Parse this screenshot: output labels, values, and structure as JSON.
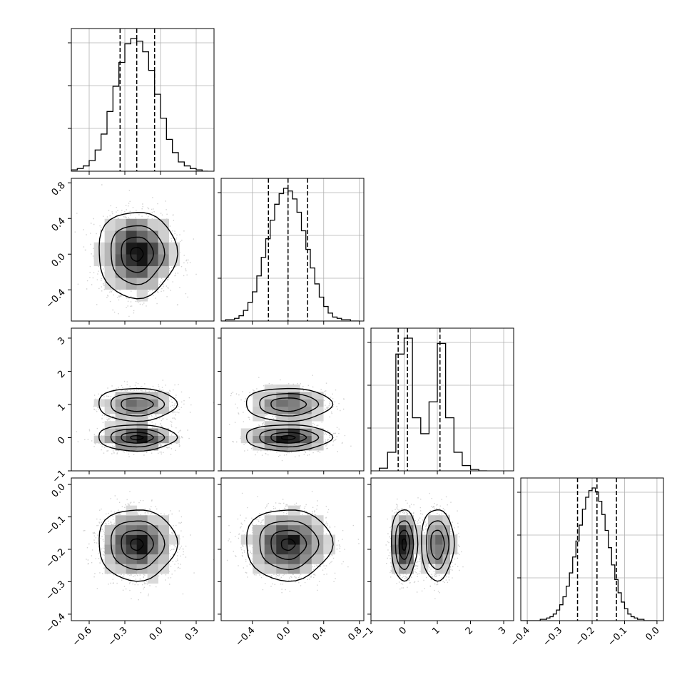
{
  "figure": {
    "background": "#ffffff",
    "ink_color": "#000000",
    "grid_color": "#b0b0b0",
    "scatter_color": "#9a9a9a"
  },
  "parameters": [
    {
      "range": [
        -0.75,
        0.45
      ],
      "ticks": [
        -0.6,
        -0.3,
        0.0,
        0.3
      ],
      "tick_labels": [
        "−0.6",
        "−0.3",
        "0.0",
        "0.3"
      ],
      "mean": -0.2,
      "sd": 0.15,
      "quantiles": [
        -0.34,
        -0.2,
        -0.05
      ]
    },
    {
      "range": [
        -0.75,
        0.85
      ],
      "ticks": [
        -0.4,
        0.0,
        0.4,
        0.8
      ],
      "tick_labels": [
        "−0.4",
        "0.0",
        "0.4",
        "0.8"
      ],
      "mean": 0.0,
      "sd": 0.22,
      "quantiles": [
        -0.22,
        0.0,
        0.22
      ]
    },
    {
      "range": [
        -1.0,
        3.3
      ],
      "ticks": [
        -1,
        0,
        1,
        2,
        3
      ],
      "tick_labels": [
        "−1",
        "0",
        "1",
        "2",
        "3"
      ],
      "mixture": [
        {
          "mean": 0.0,
          "sd": 0.2,
          "weight": 0.55
        },
        {
          "mean": 1.0,
          "sd": 0.25,
          "weight": 0.45
        }
      ],
      "quantiles": [
        -0.18,
        0.1,
        1.08
      ]
    },
    {
      "range": [
        -0.42,
        0.02
      ],
      "ticks": [
        -0.4,
        -0.3,
        -0.2,
        -0.1,
        0.0
      ],
      "tick_labels": [
        "−0.4",
        "−0.3",
        "−0.2",
        "−0.1",
        "0.0"
      ],
      "mean": -0.185,
      "sd": 0.05,
      "quantiles": [
        -0.245,
        -0.185,
        -0.125
      ]
    }
  ],
  "chart_data": {
    "type": "corner",
    "n_parameters": 4,
    "title": "",
    "grid": true,
    "legend": "none",
    "histograms": [
      {
        "parameter": 0,
        "bin_edges": [
          -0.75,
          -0.7,
          -0.65,
          -0.6,
          -0.55,
          -0.5,
          -0.45,
          -0.4,
          -0.35,
          -0.3,
          -0.25,
          -0.2,
          -0.15,
          -0.1,
          -0.05,
          0.0,
          0.05,
          0.1,
          0.15,
          0.2,
          0.25,
          0.3,
          0.35,
          0.4
        ],
        "counts": [
          1,
          2,
          4,
          8,
          16,
          28,
          45,
          64,
          82,
          96,
          100,
          98,
          90,
          76,
          58,
          40,
          24,
          14,
          7,
          4,
          2,
          1,
          0
        ],
        "quantiles": [
          -0.34,
          -0.2,
          -0.05
        ]
      },
      {
        "parameter": 1,
        "bin_edges": [
          -0.75,
          -0.7,
          -0.65,
          -0.6,
          -0.55,
          -0.5,
          -0.45,
          -0.4,
          -0.35,
          -0.3,
          -0.25,
          -0.2,
          -0.15,
          -0.1,
          -0.05,
          0.0,
          0.05,
          0.1,
          0.15,
          0.2,
          0.25,
          0.3,
          0.35,
          0.4,
          0.45,
          0.5,
          0.55,
          0.6,
          0.65,
          0.7,
          0.75,
          0.8
        ],
        "counts": [
          0,
          1,
          1,
          2,
          4,
          8,
          14,
          22,
          34,
          48,
          62,
          76,
          88,
          96,
          100,
          98,
          92,
          82,
          68,
          54,
          40,
          28,
          18,
          11,
          6,
          3,
          2,
          1,
          1,
          0,
          0
        ],
        "quantiles": [
          -0.22,
          0.0,
          0.22
        ]
      },
      {
        "parameter": 2,
        "bin_edges": [
          -0.75,
          -0.5,
          -0.25,
          0.0,
          0.25,
          0.5,
          0.75,
          1.0,
          1.25,
          1.5,
          1.75,
          2.0,
          2.25,
          2.5
        ],
        "counts": [
          2,
          14,
          88,
          100,
          40,
          28,
          52,
          96,
          40,
          14,
          4,
          1,
          0
        ],
        "quantiles": [
          -0.18,
          0.1,
          1.08
        ]
      },
      {
        "parameter": 3,
        "bin_edges": [
          -0.42,
          -0.41,
          -0.4,
          -0.39,
          -0.38,
          -0.37,
          -0.36,
          -0.35,
          -0.34,
          -0.33,
          -0.32,
          -0.31,
          -0.3,
          -0.29,
          -0.28,
          -0.27,
          -0.26,
          -0.25,
          -0.24,
          -0.23,
          -0.22,
          -0.21,
          -0.2,
          -0.19,
          -0.18,
          -0.17,
          -0.16,
          -0.15,
          -0.14,
          -0.13,
          -0.12,
          -0.11,
          -0.1,
          -0.09,
          -0.08,
          -0.07,
          -0.06,
          -0.05,
          -0.04,
          -0.03,
          -0.02,
          -0.01,
          0.0
        ],
        "counts": [
          0,
          0,
          0,
          0,
          0,
          0,
          1,
          1,
          2,
          3,
          5,
          8,
          12,
          18,
          26,
          36,
          48,
          60,
          72,
          84,
          93,
          98,
          100,
          97,
          90,
          80,
          68,
          55,
          42,
          31,
          21,
          14,
          9,
          5,
          3,
          2,
          1,
          1,
          0,
          0,
          0,
          0
        ],
        "quantiles": [
          -0.245,
          -0.185,
          -0.125
        ]
      }
    ],
    "pairs": [
      {
        "x_parameter": 0,
        "y_parameter": 1
      },
      {
        "x_parameter": 0,
        "y_parameter": 2
      },
      {
        "x_parameter": 1,
        "y_parameter": 2
      },
      {
        "x_parameter": 0,
        "y_parameter": 3
      },
      {
        "x_parameter": 1,
        "y_parameter": 3
      },
      {
        "x_parameter": 2,
        "y_parameter": 3
      }
    ],
    "axes": {
      "x_tick_labels": [
        [
          "−0.6",
          "−0.3",
          "0.0",
          "0.3"
        ],
        [
          "−0.4",
          "0.0",
          "0.4",
          "0.8"
        ],
        [
          "−1",
          "0",
          "1",
          "2",
          "3"
        ],
        [
          "−0.4",
          "−0.3",
          "−0.2",
          "−0.1",
          "0.0"
        ]
      ],
      "y_tick_labels": [
        [],
        [
          "−0.4",
          "0.0",
          "0.4",
          "0.8"
        ],
        [
          "−1",
          "0",
          "1",
          "2",
          "3"
        ],
        [
          "−0.4",
          "−0.3",
          "−0.2",
          "−0.1",
          "0.0"
        ]
      ]
    }
  }
}
